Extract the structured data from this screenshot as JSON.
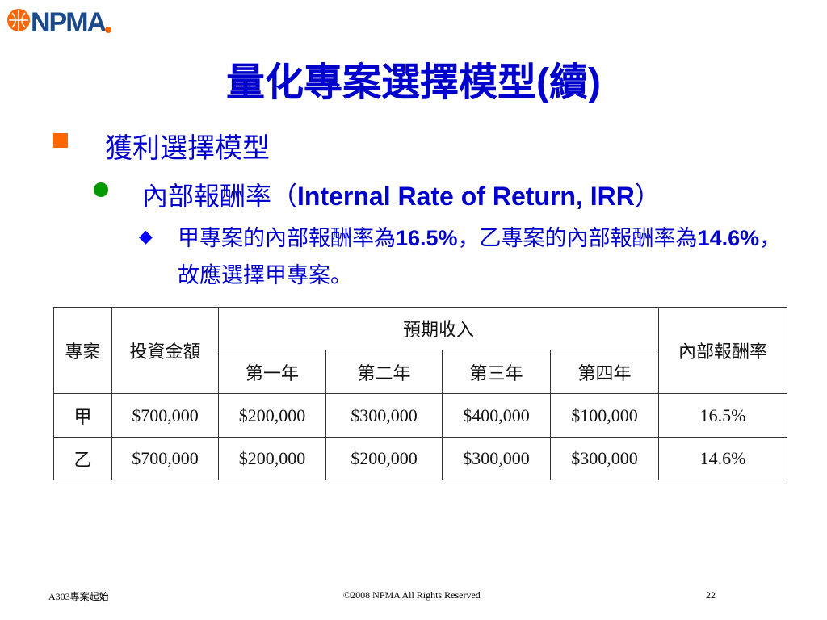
{
  "logo": {
    "text": "NPMA",
    "colors": {
      "orange": "#ff6600",
      "blue": "#1a4a8a"
    }
  },
  "title": "量化專案選擇模型(續)",
  "bullet1": "獲利選擇模型",
  "bullet2": {
    "zh": "內部報酬率（",
    "en": "Internal Rate of Return, IRR",
    "close": "）"
  },
  "bullet3": {
    "p1": "甲專案的內部報酬率為",
    "v1": "16.5%",
    "p2": "，乙專案的內部報酬率為",
    "v2": "14.6%",
    "p3": "，故應選擇甲專案。"
  },
  "table": {
    "headers": {
      "project": "專案",
      "investment": "投資金額",
      "expected": "預期收入",
      "irr": "內部報酬率",
      "years": [
        "第一年",
        "第二年",
        "第三年",
        "第四年"
      ]
    },
    "rows": [
      {
        "project": "甲",
        "investment": "$700,000",
        "income": [
          "$200,000",
          "$300,000",
          "$400,000",
          "$100,000"
        ],
        "irr": "16.5%"
      },
      {
        "project": "乙",
        "investment": "$700,000",
        "income": [
          "$200,000",
          "$200,000",
          "$300,000",
          "$300,000"
        ],
        "irr": "14.6%"
      }
    ]
  },
  "footer": {
    "left": "A303專案起始",
    "center": "©2008 NPMA  All Rights Reserved",
    "page": "22"
  },
  "colors": {
    "title": "#0000cc",
    "bullet1": "#ff6600",
    "bullet2": "#009900"
  }
}
